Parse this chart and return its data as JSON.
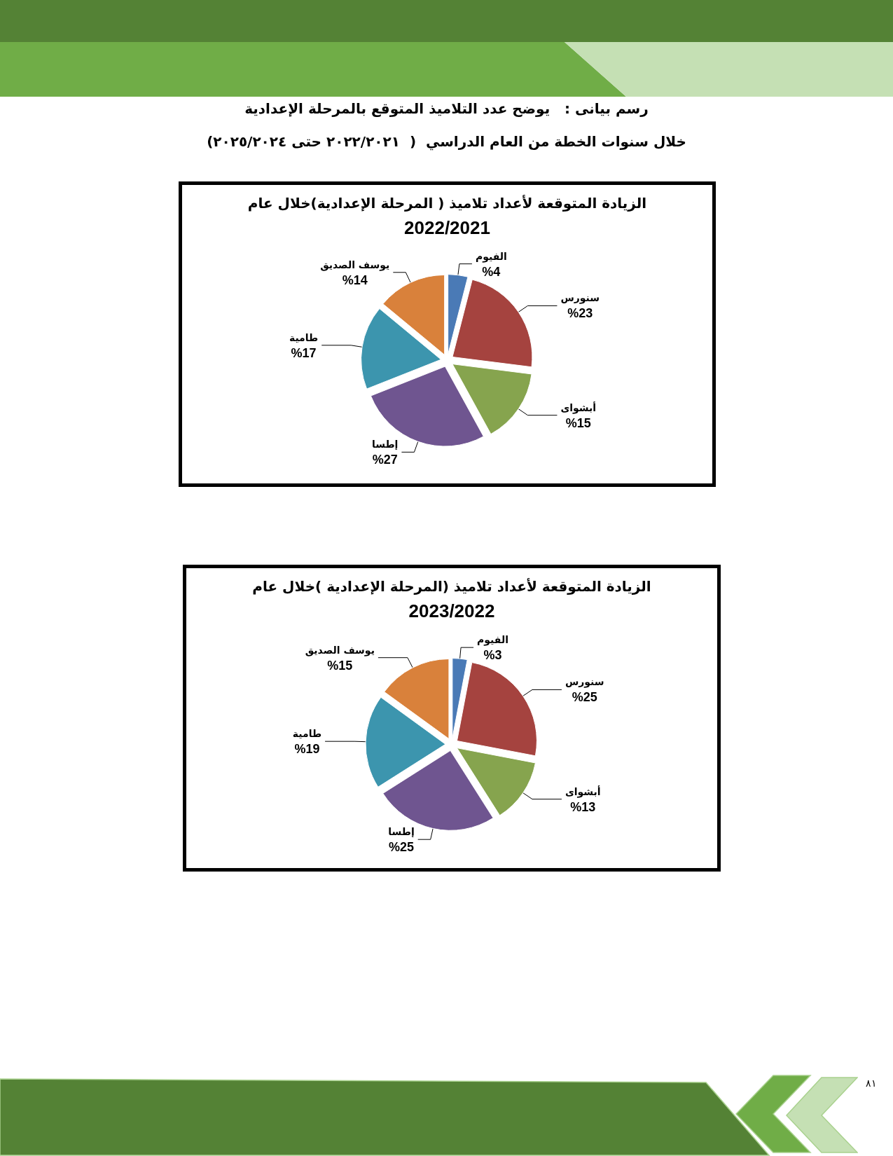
{
  "chart_data": [
    {
      "type": "pie",
      "title": "الزيادة المتوقعة لأعداد تلاميذ ( المرحلة الإعدادية)خلال عام",
      "subtitle": "2022/2021",
      "categories": [
        "الفيوم",
        "سنورس",
        "أبشواى",
        "إطسا",
        "طامية",
        "يوسف الصديق"
      ],
      "values": [
        4,
        23,
        15,
        27,
        17,
        14
      ],
      "value_labels": [
        "%4",
        "%23",
        "%15",
        "%27",
        "%17",
        "%14"
      ],
      "colors": [
        "#4a7ab6",
        "#a5433f",
        "#86a44e",
        "#6f5590",
        "#3c95ae",
        "#d9813b"
      ],
      "annotations": [
        "رسم بيانى :   يوضح عدد التلاميذ المتوقع بالمرحلة الإعدادية",
        "خلال سنوات الخطة من العام الدراسي  (  ٢٠٢٢/٢٠٢١ حتى ٢٠٢٥/٢٠٢٤)"
      ]
    },
    {
      "type": "pie",
      "title": "الزيادة المتوقعة لأعداد تلاميذ (المرحلة الإعدادية )خلال عام",
      "subtitle": "2023/2022",
      "categories": [
        "الفيوم",
        "سنورس",
        "أبشواى",
        "إطسا",
        "طامية",
        "يوسف الصديق"
      ],
      "values": [
        3,
        25,
        13,
        25,
        19,
        15
      ],
      "value_labels": [
        "%3",
        "%25",
        "%13",
        "%25",
        "%19",
        "%15"
      ],
      "colors": [
        "#4a7ab6",
        "#a5433f",
        "#86a44e",
        "#6f5590",
        "#3c95ae",
        "#d9813b"
      ],
      "annotations": [
        "٨١"
      ]
    }
  ]
}
